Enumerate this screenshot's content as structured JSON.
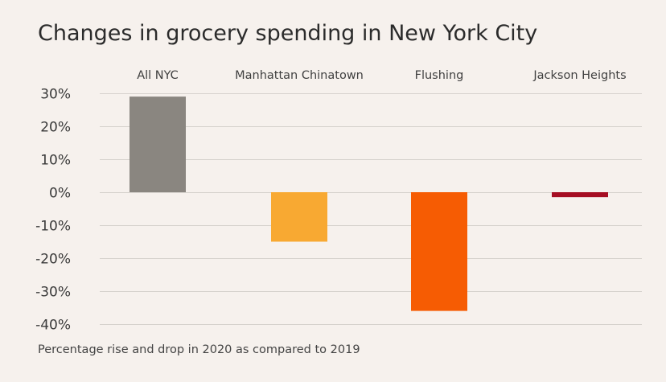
{
  "chart_data": {
    "type": "bar",
    "title": "Changes in grocery spending in New York City",
    "subtitle": "Percentage rise and drop in 2020 as compared to 2019",
    "categories": [
      "All NYC",
      "Manhattan Chinatown",
      "Flushing",
      "Jackson Heights"
    ],
    "values": [
      29,
      -15,
      -36,
      -1.5
    ],
    "colors": [
      "#8a8680",
      "#f8a932",
      "#f65c03",
      "#a50e23"
    ],
    "ylim": [
      -40,
      30
    ],
    "yticks": [
      30,
      20,
      10,
      0,
      -10,
      -20,
      -30,
      -40
    ],
    "ytick_labels": [
      "30%",
      "20%",
      "10%",
      "0%",
      "-10%",
      "-20%",
      "-30%",
      "-40%"
    ],
    "xlabel": "",
    "ylabel": "",
    "category_labels_position": "top",
    "grid": true,
    "legend": false
  }
}
